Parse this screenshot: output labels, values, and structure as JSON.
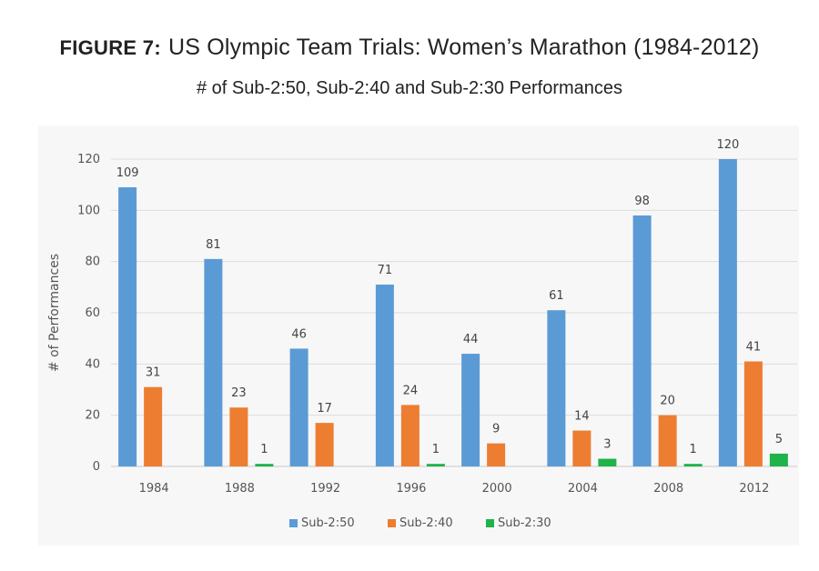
{
  "figure_label": "FIGURE 7:",
  "title": "US Olympic Team Trials: Women’s Marathon (1984-2012)",
  "subtitle": "# of Sub-2:50, Sub-2:40 and Sub-2:30 Performances",
  "chart_data": {
    "type": "bar",
    "ylabel": "# of Performances",
    "xlabel": "",
    "ylim": [
      0,
      120
    ],
    "yticks": [
      0,
      20,
      40,
      60,
      80,
      100,
      120
    ],
    "grid": true,
    "legend_position": "bottom",
    "categories": [
      "1984",
      "1988",
      "1992",
      "1996",
      "2000",
      "2004",
      "2008",
      "2012"
    ],
    "series": [
      {
        "name": "Sub-2:50",
        "color": "#5b9bd5",
        "values": [
          109,
          81,
          46,
          71,
          44,
          61,
          98,
          120
        ]
      },
      {
        "name": "Sub-2:40",
        "color": "#ed7d31",
        "values": [
          31,
          23,
          17,
          24,
          9,
          14,
          20,
          41
        ]
      },
      {
        "name": "Sub-2:30",
        "color": "#1fb34a",
        "values": [
          null,
          1,
          null,
          1,
          null,
          3,
          1,
          5
        ]
      }
    ]
  }
}
